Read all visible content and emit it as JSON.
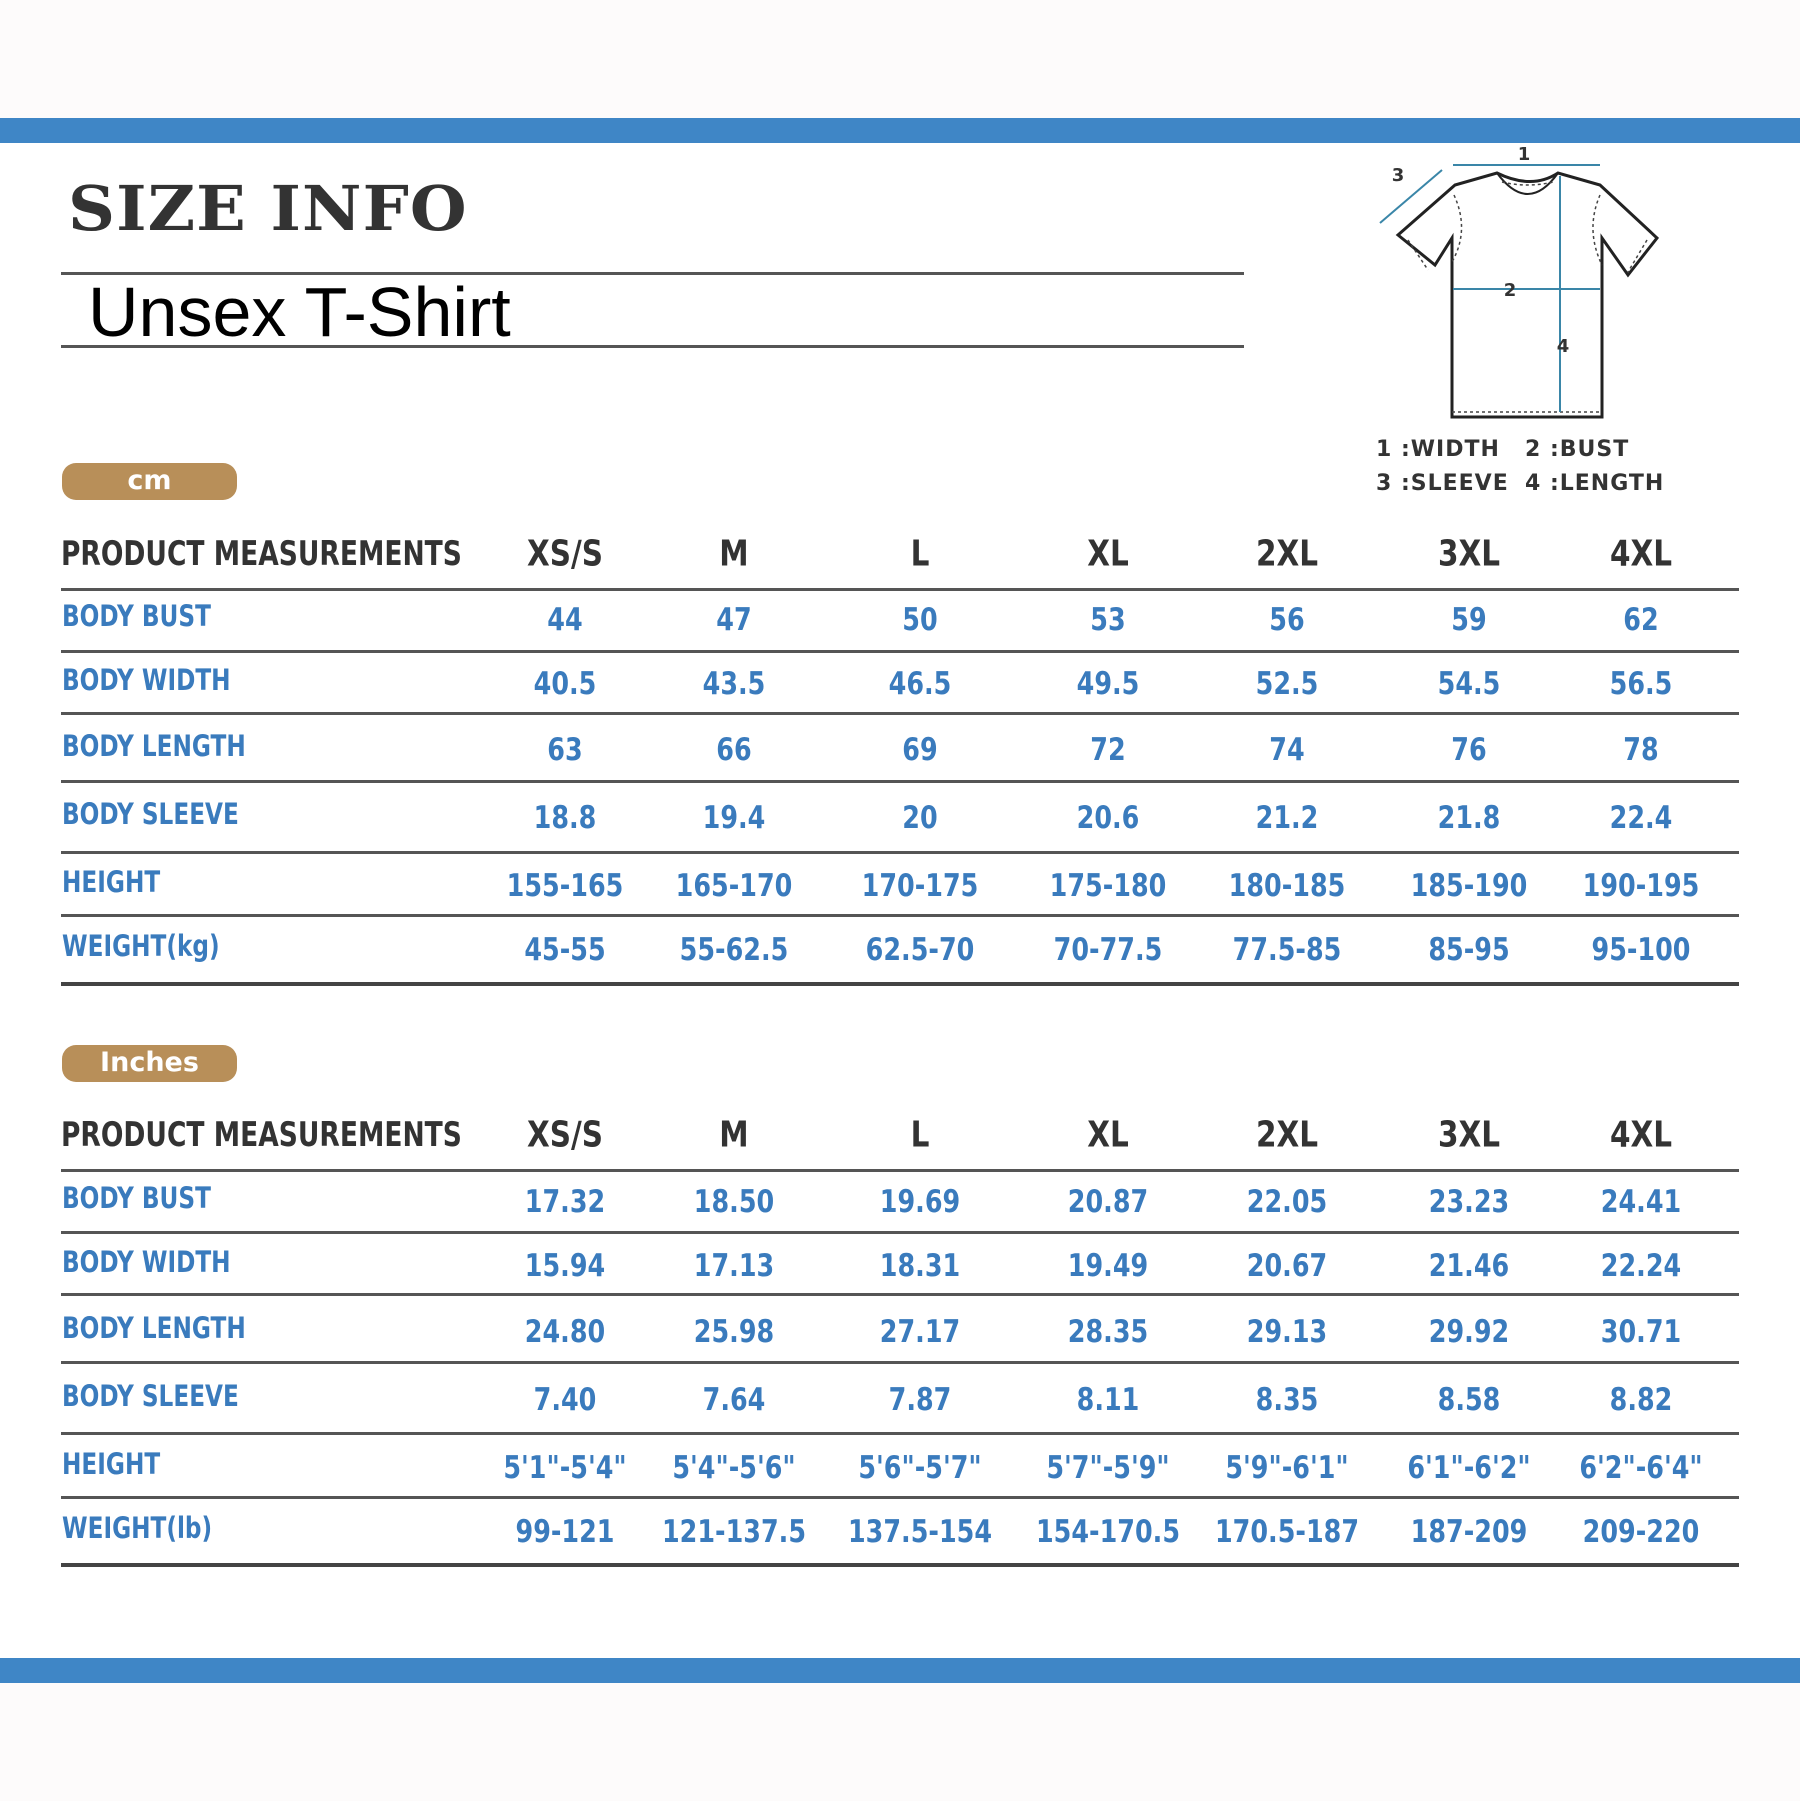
{
  "header": {
    "title": "SIZE INFO",
    "subtitle": "Unsex T-Shirt"
  },
  "colors": {
    "accent_bar": "#3f86c6",
    "badge": "#b88f59",
    "value_text": "#3a7bbd",
    "header_text": "#333333"
  },
  "diagram": {
    "icon": "t-shirt-measurement-diagram",
    "marker_labels": [
      "1",
      "2",
      "3",
      "4"
    ],
    "legend": [
      "1 :WIDTH",
      "2 :BUST",
      "3 :SLEEVE",
      "4 :LENGTH"
    ]
  },
  "tables": [
    {
      "unit": "cm",
      "header": [
        "PRODUCT MEASUREMENTS",
        "XS/S",
        "M",
        "L",
        "XL",
        "2XL",
        "3XL",
        "4XL"
      ],
      "rows": [
        {
          "label": "BODY BUST",
          "values": [
            "44",
            "47",
            "50",
            "53",
            "56",
            "59",
            "62"
          ]
        },
        {
          "label": "BODY WIDTH",
          "values": [
            "40.5",
            "43.5",
            "46.5",
            "49.5",
            "52.5",
            "54.5",
            "56.5"
          ]
        },
        {
          "label": "BODY LENGTH",
          "values": [
            "63",
            "66",
            "69",
            "72",
            "74",
            "76",
            "78"
          ]
        },
        {
          "label": "BODY SLEEVE",
          "values": [
            "18.8",
            "19.4",
            "20",
            "20.6",
            "21.2",
            "21.8",
            "22.4"
          ]
        },
        {
          "label": "HEIGHT",
          "values": [
            "155-165",
            "165-170",
            "170-175",
            "175-180",
            "180-185",
            "185-190",
            "190-195"
          ]
        },
        {
          "label": "WEIGHT(kg)",
          "values": [
            "45-55",
            "55-62.5",
            "62.5-70",
            "70-77.5",
            "77.5-85",
            "85-95",
            "95-100"
          ]
        }
      ]
    },
    {
      "unit": "Inches",
      "header": [
        "PRODUCT MEASUREMENTS",
        "XS/S",
        "M",
        "L",
        "XL",
        "2XL",
        "3XL",
        "4XL"
      ],
      "rows": [
        {
          "label": "BODY BUST",
          "values": [
            "17.32",
            "18.50",
            "19.69",
            "20.87",
            "22.05",
            "23.23",
            "24.41"
          ]
        },
        {
          "label": "BODY WIDTH",
          "values": [
            "15.94",
            "17.13",
            "18.31",
            "19.49",
            "20.67",
            "21.46",
            "22.24"
          ]
        },
        {
          "label": "BODY LENGTH",
          "values": [
            "24.80",
            "25.98",
            "27.17",
            "28.35",
            "29.13",
            "29.92",
            "30.71"
          ]
        },
        {
          "label": "BODY SLEEVE",
          "values": [
            "7.40",
            "7.64",
            "7.87",
            "8.11",
            "8.35",
            "8.58",
            "8.82"
          ]
        },
        {
          "label": "HEIGHT",
          "values": [
            "5'1\"-5'4\"",
            "5'4\"-5'6\"",
            "5'6\"-5'7\"",
            "5'7\"-5'9\"",
            "5'9\"-6'1\"",
            "6'1\"-6'2\"",
            "6'2\"-6'4\""
          ]
        },
        {
          "label": "WEIGHT(lb)",
          "values": [
            "99-121",
            "121-137.5",
            "137.5-154",
            "154-170.5",
            "170.5-187",
            "187-209",
            "209-220"
          ]
        }
      ]
    }
  ]
}
